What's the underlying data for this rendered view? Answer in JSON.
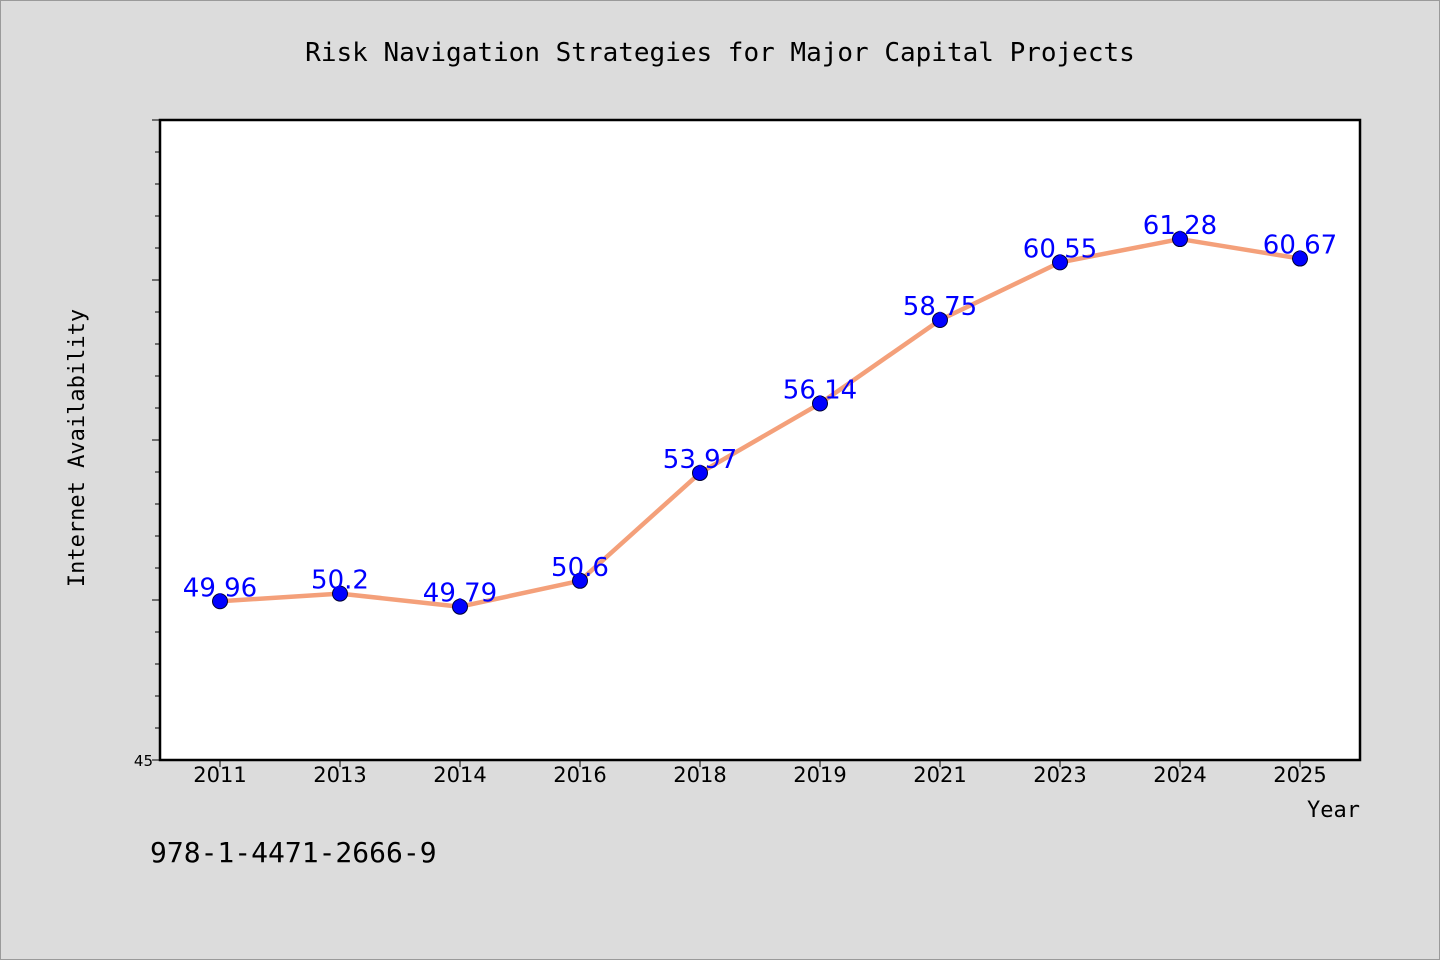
{
  "chart_data": {
    "type": "line",
    "title": "Risk Navigation Strategies for Major Capital Projects",
    "xlabel": "Year",
    "ylabel": "Internet Availability",
    "categories": [
      "2011",
      "2013",
      "2014",
      "2016",
      "2018",
      "2019",
      "2021",
      "2023",
      "2024",
      "2025"
    ],
    "series": [
      {
        "values": [
          49.96,
          50.2,
          49.79,
          50.6,
          53.97,
          56.14,
          58.75,
          60.55,
          61.28,
          60.67
        ]
      }
    ],
    "data_labels": [
      "49.96",
      "50.2",
      "49.79",
      "50.6",
      "53.97",
      "56.14",
      "58.75",
      "60.55",
      "61.28",
      "60.67"
    ],
    "ylim": [
      45,
      65
    ],
    "y_tick_labels": [
      "45"
    ],
    "grid": false,
    "legend": "none",
    "colors": {
      "line": "#f4a07a",
      "marker": "#0000ff",
      "label": "#0000ff",
      "background": "#dcdcdc",
      "plot_area": "#ffffff"
    }
  },
  "footer": {
    "isbn": "978-1-4471-2666-9"
  }
}
